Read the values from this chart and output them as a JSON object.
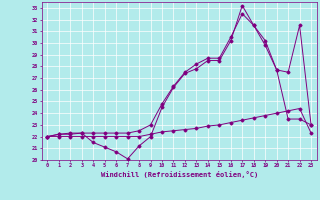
{
  "xlabel": "Windchill (Refroidissement éolien,°C)",
  "background_color": "#b2ebeb",
  "grid_color": "#ffffff",
  "line_color": "#800080",
  "xlim": [
    -0.5,
    23.5
  ],
  "ylim": [
    20,
    33.5
  ],
  "xticks": [
    0,
    1,
    2,
    3,
    4,
    5,
    6,
    7,
    8,
    9,
    10,
    11,
    12,
    13,
    14,
    15,
    16,
    17,
    18,
    19,
    20,
    21,
    22,
    23
  ],
  "yticks": [
    20,
    21,
    22,
    23,
    24,
    25,
    26,
    27,
    28,
    29,
    30,
    31,
    32,
    33
  ],
  "line1_x": [
    0,
    1,
    2,
    3,
    4,
    5,
    6,
    7,
    8,
    9,
    10,
    11,
    12,
    13,
    14,
    15,
    16,
    17,
    18,
    19,
    20,
    21,
    22,
    23
  ],
  "line1_y": [
    22,
    22,
    22,
    22,
    22,
    22,
    22,
    22,
    22,
    22.2,
    22.4,
    22.5,
    22.6,
    22.7,
    22.9,
    23.0,
    23.2,
    23.4,
    23.6,
    23.8,
    24.0,
    24.2,
    24.4,
    22.3
  ],
  "line2_x": [
    0,
    1,
    2,
    3,
    4,
    5,
    6,
    7,
    8,
    9,
    10,
    11,
    12,
    13,
    14,
    15,
    16,
    17,
    18,
    19,
    20,
    21,
    22,
    23
  ],
  "line2_y": [
    22,
    22.2,
    22.3,
    22.3,
    21.5,
    21.1,
    20.7,
    20.1,
    21.2,
    22.0,
    24.5,
    26.2,
    27.4,
    27.8,
    28.5,
    28.5,
    30.2,
    33.2,
    31.5,
    29.8,
    27.7,
    23.5,
    23.5,
    23.0
  ],
  "line3_x": [
    0,
    1,
    2,
    3,
    4,
    5,
    6,
    7,
    8,
    9,
    10,
    11,
    12,
    13,
    14,
    15,
    16,
    17,
    18,
    19,
    20,
    21,
    22,
    23
  ],
  "line3_y": [
    22,
    22.2,
    22.2,
    22.3,
    22.3,
    22.3,
    22.3,
    22.3,
    22.5,
    23.0,
    24.8,
    26.3,
    27.5,
    28.2,
    28.7,
    28.7,
    30.5,
    32.5,
    31.5,
    30.2,
    27.7,
    27.5,
    31.5,
    23.0
  ]
}
